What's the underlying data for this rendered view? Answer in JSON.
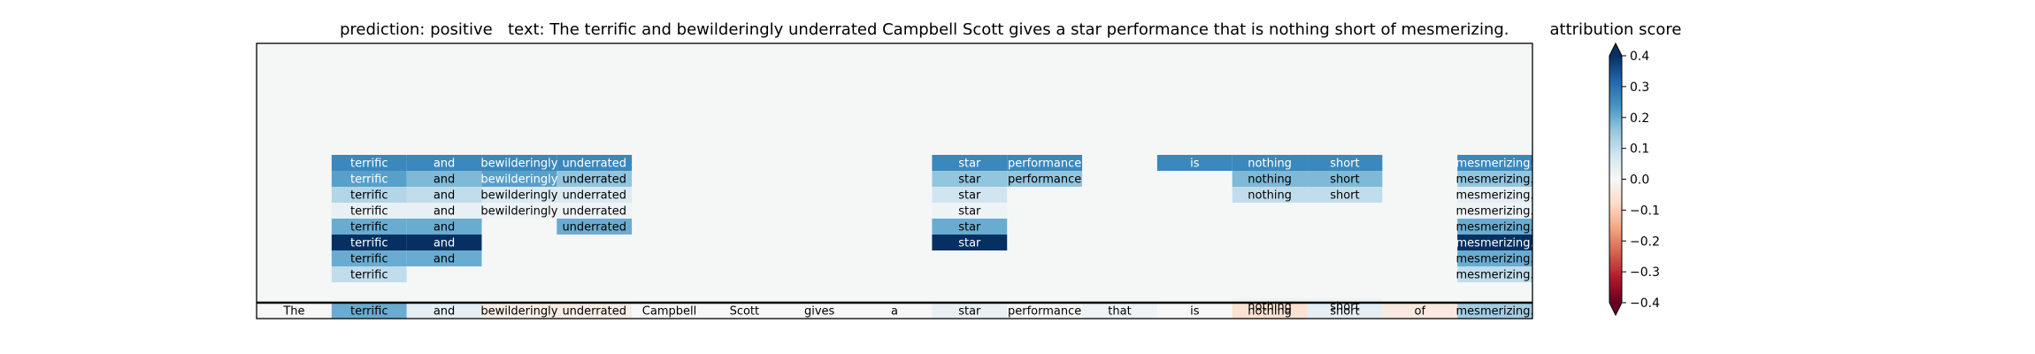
{
  "chart_data": {
    "type": "heatmap",
    "title_prediction": "prediction:  positive",
    "title_text": "text:  The terrific and bewilderingly underrated Campbell Scott gives a star performance that is nothing short of mesmerizing.",
    "colorbar_label": "attribution score",
    "tokens": [
      "The",
      "terrific",
      "and",
      "bewilderingly",
      "underrated",
      "Campbell",
      "Scott",
      "gives",
      "a",
      "star",
      "performance",
      "that",
      "is",
      "nothing",
      "short",
      "of",
      "mesmerizing."
    ],
    "layer_rows": [
      {
        "terrific": 0.26,
        "and": 0.26,
        "bewilderingly": 0.26,
        "underrated": 0.26,
        "star": 0.26,
        "performance": 0.26,
        "is": 0.26,
        "nothing": 0.26,
        "short": 0.26,
        "mesmerizing.": 0.26
      },
      {
        "terrific": 0.22,
        "and": 0.18,
        "bewilderingly": 0.22,
        "underrated": 0.16,
        "star": 0.16,
        "performance": 0.16,
        "nothing": 0.18,
        "short": 0.18,
        "mesmerizing.": 0.16
      },
      {
        "terrific": 0.12,
        "and": 0.1,
        "bewilderingly": 0.06,
        "underrated": 0.06,
        "star": 0.08,
        "nothing": 0.1,
        "short": 0.1,
        "mesmerizing.": 0.04
      },
      {
        "terrific": 0.03,
        "and": 0.03,
        "bewilderingly": 0.02,
        "underrated": 0.02,
        "star": 0.02,
        "mesmerizing.": 0.02
      },
      {
        "terrific": 0.2,
        "and": 0.2,
        "underrated": 0.2,
        "star": 0.2,
        "mesmerizing.": 0.2
      },
      {
        "terrific": 0.4,
        "and": 0.4,
        "star": 0.4,
        "mesmerizing.": 0.4
      },
      {
        "terrific": 0.2,
        "and": 0.2,
        "mesmerizing.": 0.2
      },
      {
        "terrific": 0.1,
        "mesmerizing.": 0.1
      },
      {},
      {
        "nothing": 0.02,
        "short": 0.02
      }
    ],
    "overall_row": [
      0.0,
      0.2,
      0.04,
      -0.03,
      -0.03,
      0.0,
      0.0,
      0.0,
      0.0,
      0.03,
      0.0,
      0.02,
      0.0,
      -0.06,
      0.04,
      -0.04,
      0.14
    ],
    "colorbar": {
      "min": -0.4,
      "max": 0.4,
      "ticks": [
        0.4,
        0.3,
        0.2,
        0.1,
        0.0,
        -0.1,
        -0.2,
        -0.3,
        -0.4
      ],
      "tick_labels": [
        "0.4",
        "0.3",
        "0.2",
        "0.1",
        "0.0",
        "−0.1",
        "−0.2",
        "−0.3",
        "−0.4"
      ],
      "colormap": "RdBu"
    },
    "background_color": "#f5f7f7"
  }
}
